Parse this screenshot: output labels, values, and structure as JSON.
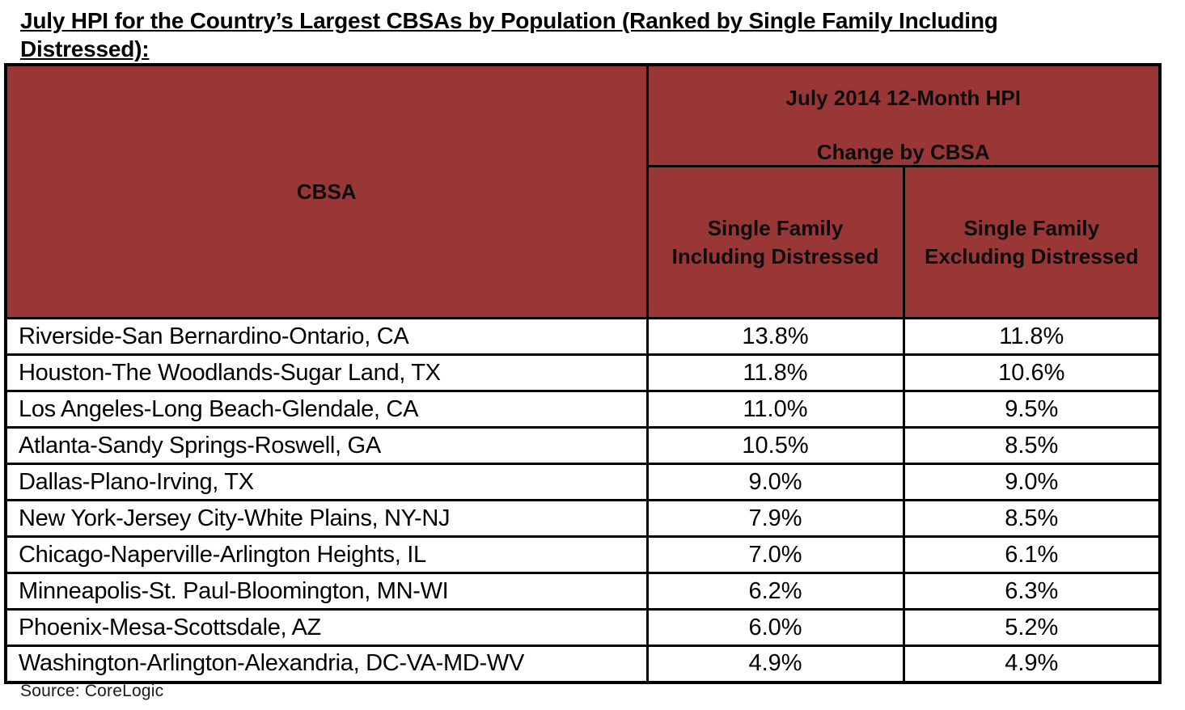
{
  "page": {
    "title": "July HPI for the Country’s Largest CBSAs by Population (Ranked by Single Family Including Distressed):",
    "source": "Source:  CoreLogic"
  },
  "colors": {
    "header_bg": "#993737",
    "border": "#000000",
    "title_text": "#050505"
  },
  "table": {
    "header": {
      "cbsa_label": "CBSA",
      "group_line1": "July 2014 12-Month HPI",
      "group_line2": "Change by CBSA",
      "col_including": "Single Family Including Distressed",
      "col_excluding": "Single Family Excluding Distressed"
    },
    "rows": [
      {
        "cbsa": "Riverside-San Bernardino-Ontario, CA",
        "including": "13.8%",
        "excluding": "11.8%"
      },
      {
        "cbsa": "Houston-The Woodlands-Sugar Land, TX",
        "including": "11.8%",
        "excluding": "10.6%"
      },
      {
        "cbsa": "Los Angeles-Long Beach-Glendale, CA",
        "including": "11.0%",
        "excluding": "9.5%"
      },
      {
        "cbsa": "Atlanta-Sandy Springs-Roswell, GA",
        "including": "10.5%",
        "excluding": "8.5%"
      },
      {
        "cbsa": "Dallas-Plano-Irving, TX",
        "including": "9.0%",
        "excluding": "9.0%"
      },
      {
        "cbsa": "New York-Jersey City-White Plains, NY-NJ",
        "including": "7.9%",
        "excluding": "8.5%"
      },
      {
        "cbsa": "Chicago-Naperville-Arlington Heights, IL",
        "including": "7.0%",
        "excluding": "6.1%"
      },
      {
        "cbsa": "Minneapolis-St. Paul-Bloomington, MN-WI",
        "including": "6.2%",
        "excluding": "6.3%"
      },
      {
        "cbsa": "Phoenix-Mesa-Scottsdale, AZ",
        "including": "6.0%",
        "excluding": "5.2%"
      },
      {
        "cbsa": "Washington-Arlington-Alexandria, DC-VA-MD-WV",
        "including": "4.9%",
        "excluding": "4.9%"
      }
    ]
  }
}
